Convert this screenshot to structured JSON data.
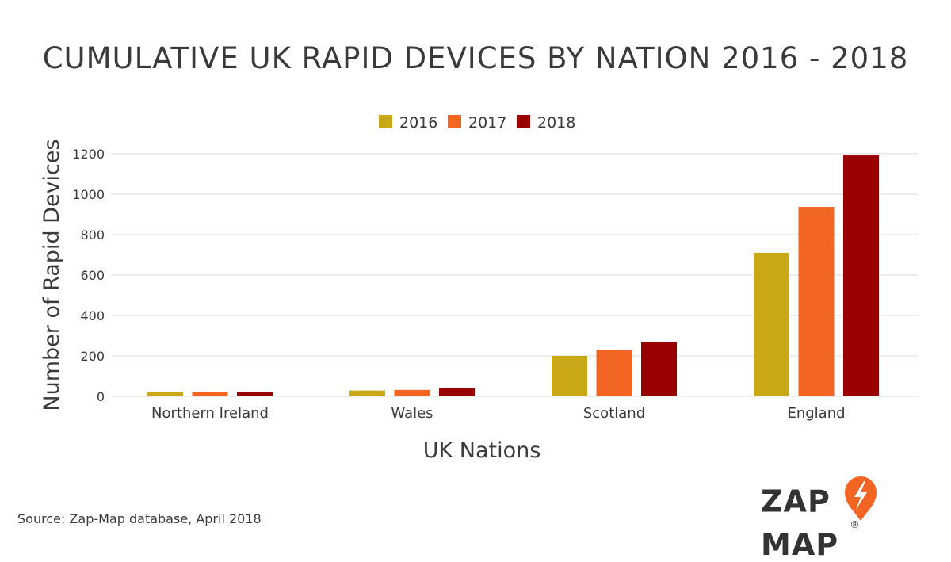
{
  "chart_data": {
    "type": "bar",
    "title": "CUMULATIVE UK RAPID DEVICES BY NATION 2016 - 2018",
    "xlabel": "UK Nations",
    "ylabel": "Number of Rapid Devices",
    "categories": [
      "Northern Ireland",
      "Wales",
      "Scotland",
      "England"
    ],
    "series": [
      {
        "name": "2016",
        "color": "#c8a816",
        "values": [
          20,
          29,
          200,
          710
        ]
      },
      {
        "name": "2017",
        "color": "#f26522",
        "values": [
          20,
          32,
          231,
          937
        ]
      },
      {
        "name": "2018",
        "color": "#990000",
        "values": [
          20,
          40,
          267,
          1192
        ]
      }
    ],
    "ylim": [
      0,
      1200
    ],
    "yticks": [
      0,
      200,
      400,
      600,
      800,
      1000,
      1200
    ],
    "grid": true,
    "legend": "top-center"
  },
  "source": "Source: Zap-Map database, April 2018",
  "logo": {
    "left": "ZAP",
    "right": "MAP",
    "mark": "®",
    "accent": "#f26522"
  }
}
